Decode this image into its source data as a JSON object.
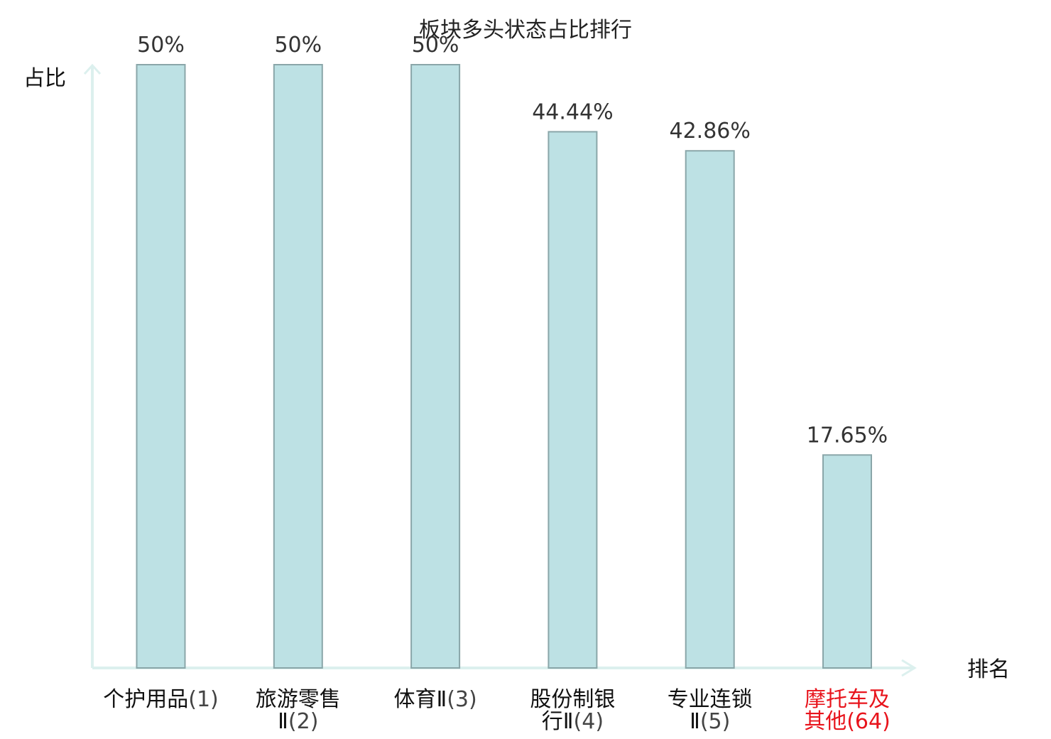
{
  "chart_data": {
    "type": "bar",
    "title": "板块多头状态占比排行",
    "ylabel": "占比",
    "xlabel": "排名",
    "ylim": [
      0,
      50
    ],
    "grid": false,
    "legend": "none",
    "categories": [
      {
        "name_lines": [
          "个护用品"
        ],
        "rank": "(1)",
        "highlight": false
      },
      {
        "name_lines": [
          "旅游零售",
          "Ⅱ"
        ],
        "rank": "(2)",
        "highlight": false
      },
      {
        "name_lines": [
          "体育Ⅱ"
        ],
        "rank": "(3)",
        "highlight": false
      },
      {
        "name_lines": [
          "股份制银",
          "行Ⅱ"
        ],
        "rank": "(4)",
        "highlight": false
      },
      {
        "name_lines": [
          "专业连锁",
          "Ⅱ"
        ],
        "rank": "(5)",
        "highlight": false
      },
      {
        "name_lines": [
          "摩托车及",
          "其他"
        ],
        "rank": "(64)",
        "highlight": true
      }
    ],
    "values": [
      50,
      50,
      50,
      44.44,
      42.86,
      17.65
    ],
    "value_labels": [
      "50%",
      "50%",
      "50%",
      "44.44%",
      "42.86%",
      "17.65%"
    ],
    "colors": {
      "bar_fill": "#bde1e4",
      "bar_stroke": "#8aa6a9",
      "axis": "#dcf0ee",
      "highlight_text": "#e8141c",
      "normal_text": "#111111",
      "rank_text": "#444444"
    }
  }
}
